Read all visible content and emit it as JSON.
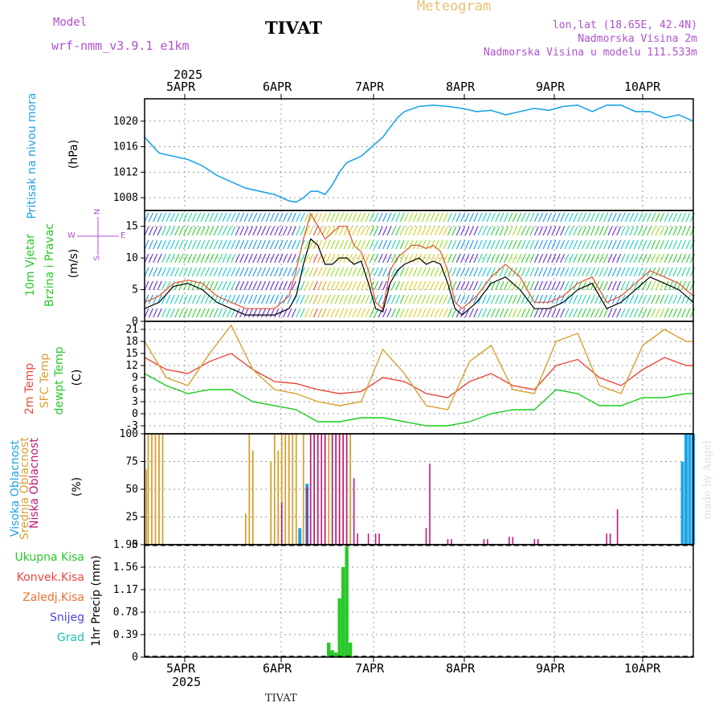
{
  "header": {
    "title": "TIVAT",
    "subtitle": "Meteogram",
    "model_label": "Model",
    "model_name": "wrf-nmm_v3.9.1 e1km",
    "lonlat": "lon,lat (18.65E, 42.4N)",
    "altitude": "Nadmorska Visina 2m",
    "model_altitude": "Nadmorska Visina u modelu 111.533m",
    "footer_station": "TIVAT",
    "credit": "made by Angel"
  },
  "colors": {
    "pressure": "#1ea3e6",
    "temp2m": "#e84a3c",
    "sfc": "#d9a030",
    "dewpt": "#1ecc1e",
    "high_cloud": "#1ea3e6",
    "mid_cloud": "#d9a030",
    "low_cloud": "#c0187a",
    "precip": "#28c828",
    "title_purple": "#b050d0",
    "meteogram_orange": "#e8c070"
  },
  "axes": {
    "year": "2025",
    "days": [
      "5APR",
      "6APR",
      "7APR",
      "8APR",
      "9APR",
      "10APR"
    ]
  },
  "panels": {
    "pressure": {
      "label": "Pritisak na nivou mora",
      "unit": "(hPa)",
      "ticks": [
        "1020",
        "1016",
        "1012",
        "1008"
      ]
    },
    "wind": {
      "label1": "10m Vjetar",
      "label2": "Brzina i Pravac",
      "unit": "(m/s)",
      "ticks": [
        "15",
        "10",
        "5",
        "0"
      ],
      "compass_n": "N",
      "compass_s": "S",
      "compass_w": "W",
      "compass_e": "E"
    },
    "temp": {
      "label1": "2m Temp",
      "label2": "SFC Temp",
      "label3": "dewpt Temp",
      "unit": "(C)",
      "ticks": [
        "21",
        "18",
        "15",
        "12",
        "9",
        "6",
        "3",
        "0",
        "-3"
      ]
    },
    "cloud": {
      "label1": "Visoka Oblacnost",
      "label2": "Srednja Oblacnost",
      "label3": "Niska Oblacnost",
      "unit": "(%)",
      "ticks": [
        "100",
        "75",
        "50",
        "25",
        "0"
      ]
    },
    "precip": {
      "label1": "Ukupna Kisa",
      "label2": "Konvek.Kisa",
      "label3": "Zaledj.Kisa",
      "label4": "Snijeg",
      "label5": "Grad",
      "unit": "1hr Precip (mm)",
      "ticks": [
        "1.95",
        "1.56",
        "1.17",
        "0.78",
        "0.39",
        "0"
      ]
    }
  },
  "chart_data": [
    {
      "type": "line",
      "id": "pressure",
      "ylabel": "Pritisak na nivou mora (hPa)",
      "ylim": [
        1006,
        1023.5
      ],
      "x_hours": [
        0,
        4,
        8,
        12,
        16,
        20,
        24,
        28,
        32,
        36,
        40,
        42,
        44,
        46,
        48,
        50,
        52,
        54,
        56,
        58,
        60,
        62,
        64,
        66,
        68,
        70,
        72,
        76,
        80,
        84,
        88,
        92,
        96,
        100,
        104,
        108,
        112,
        116,
        120,
        124,
        128,
        132,
        136,
        140,
        144,
        148,
        152
      ],
      "values": [
        1017.5,
        1015,
        1014.5,
        1014,
        1013,
        1011.5,
        1010.5,
        1009.5,
        1009,
        1008.5,
        1007.5,
        1007.3,
        1008,
        1009,
        1009,
        1008.5,
        1010,
        1012,
        1013.5,
        1014,
        1014.5,
        1015.5,
        1016.5,
        1017.5,
        1019,
        1020.5,
        1021.5,
        1022.3,
        1022.5,
        1022.3,
        1022,
        1021.5,
        1021.7,
        1021,
        1021.5,
        1022,
        1021.7,
        1022.3,
        1022.5,
        1021.5,
        1022.5,
        1022.5,
        1021.5,
        1021.5,
        1020.5,
        1021,
        1020
      ]
    },
    {
      "type": "line",
      "id": "wind",
      "ylabel": "10m Vjetar Brzina i Pravac (m/s)",
      "ylim": [
        0,
        17.5
      ],
      "x_hours": [
        0,
        4,
        8,
        12,
        16,
        20,
        24,
        28,
        32,
        36,
        40,
        42,
        44,
        46,
        48,
        50,
        52,
        54,
        56,
        58,
        60,
        62,
        64,
        66,
        68,
        70,
        72,
        74,
        76,
        78,
        80,
        82,
        84,
        86,
        88,
        90,
        92,
        96,
        100,
        104,
        108,
        112,
        116,
        120,
        124,
        128,
        132,
        136,
        140,
        144,
        148,
        152
      ],
      "values": [
        2,
        3,
        5.5,
        6,
        5,
        3,
        2,
        1,
        1,
        1,
        2,
        4,
        9,
        13,
        12,
        9,
        9,
        10,
        10,
        9,
        9.5,
        6,
        2,
        1.5,
        6,
        8,
        9,
        9.5,
        10,
        9,
        9.5,
        9,
        6,
        2,
        1,
        2,
        3,
        6,
        7,
        5,
        2,
        2,
        3,
        5,
        6,
        2,
        3,
        5,
        7,
        6,
        5,
        3
      ],
      "gust_values": [
        3,
        4,
        6,
        6.5,
        6,
        4,
        3,
        2,
        2,
        2,
        4,
        8,
        13,
        17,
        15,
        13,
        14,
        15,
        15,
        12,
        11,
        8,
        3,
        2,
        8,
        10,
        11,
        12,
        12,
        11.5,
        12,
        11,
        8,
        3,
        2,
        3,
        4,
        7,
        9,
        7,
        3,
        3,
        4,
        6,
        7,
        3,
        4,
        6,
        8,
        7,
        6,
        4
      ]
    },
    {
      "type": "line",
      "id": "temp",
      "ylabel": "Temp (C)",
      "ylim": [
        -5,
        23
      ],
      "x_hours": [
        0,
        6,
        12,
        18,
        24,
        30,
        36,
        42,
        48,
        54,
        60,
        66,
        72,
        78,
        84,
        90,
        96,
        102,
        108,
        114,
        120,
        126,
        132,
        138,
        144,
        150,
        152
      ],
      "series": [
        {
          "name": "2m Temp",
          "values": [
            14,
            11,
            10,
            13,
            15,
            11,
            8,
            7.5,
            6,
            5,
            5.5,
            9,
            8,
            5,
            4,
            8,
            10,
            7,
            6,
            12,
            13.5,
            9,
            7,
            11,
            14,
            12,
            12
          ]
        },
        {
          "name": "SFC Temp",
          "values": [
            18,
            9,
            7,
            15,
            22,
            11,
            6,
            5,
            3,
            2,
            3,
            16,
            10,
            2,
            1,
            13,
            17,
            6,
            5,
            18,
            20,
            7,
            5,
            17,
            21,
            18,
            18
          ]
        },
        {
          "name": "dewpt Temp",
          "values": [
            10,
            7,
            5,
            6,
            6,
            3,
            2,
            1,
            -2,
            -2,
            -1,
            -1,
            -2,
            -3,
            -3,
            -2,
            0,
            1,
            1,
            6,
            5,
            2,
            2,
            4,
            4,
            5,
            5
          ]
        }
      ]
    },
    {
      "type": "bar",
      "id": "cloud",
      "ylabel": "Oblacnost (%)",
      "ylim": [
        0,
        100
      ],
      "series": [
        {
          "name": "Visoka Oblacnost",
          "x_hours": [
            43,
            45,
            149,
            150,
            151,
            152
          ],
          "values": [
            15,
            55,
            75,
            100,
            100,
            100
          ]
        },
        {
          "name": "Srednja Oblacnost",
          "x_hours": [
            0.5,
            1,
            2,
            3,
            4,
            5,
            28,
            29,
            30,
            35,
            36,
            37,
            38,
            39,
            40,
            41,
            42,
            44,
            46,
            47,
            48,
            50,
            51,
            52,
            53,
            54,
            55,
            56,
            57
          ],
          "values": [
            68,
            100,
            100,
            100,
            100,
            100,
            28,
            100,
            85,
            75,
            100,
            85,
            100,
            100,
            100,
            100,
            100,
            100,
            100,
            100,
            100,
            100,
            100,
            100,
            100,
            100,
            100,
            100,
            100
          ]
        },
        {
          "name": "Niska Oblacnost",
          "x_hours": [
            38,
            45,
            46,
            47,
            48,
            49,
            50,
            52,
            53,
            54,
            55,
            56,
            58,
            59,
            62,
            64,
            65,
            78,
            79,
            84,
            85,
            94,
            95,
            101,
            102,
            108,
            109,
            128,
            129,
            131
          ],
          "values": [
            38,
            52,
            100,
            100,
            100,
            100,
            100,
            100,
            100,
            100,
            100,
            100,
            60,
            10,
            10,
            10,
            10,
            15,
            73,
            5,
            5,
            5,
            5,
            7,
            7,
            5,
            5,
            10,
            10,
            32
          ]
        }
      ]
    },
    {
      "type": "bar",
      "id": "precip",
      "ylabel": "1hr Precip (mm)",
      "ylim": [
        0,
        1.95
      ],
      "series": [
        {
          "name": "Ukupna Kisa",
          "x_hours": [
            51,
            52,
            53,
            54,
            55,
            56,
            57
          ],
          "values": [
            0.25,
            0.12,
            0.08,
            1.02,
            1.56,
            1.92,
            0.25
          ]
        }
      ]
    }
  ]
}
